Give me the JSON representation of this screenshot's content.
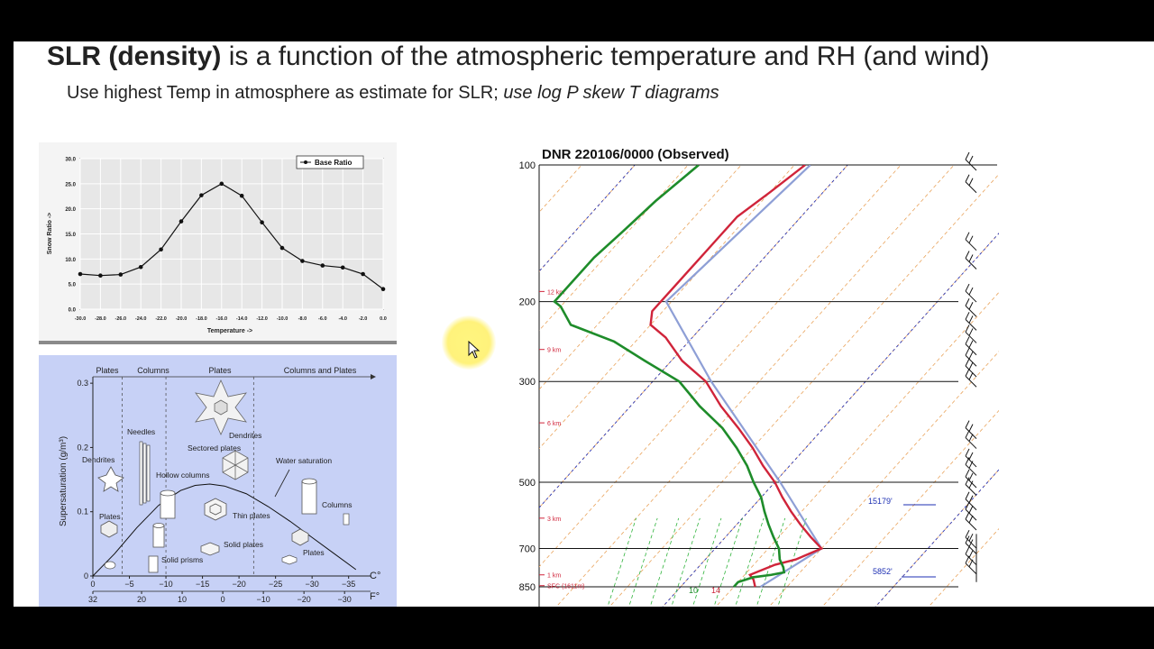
{
  "slide": {
    "title_bold": "SLR (density)",
    "title_rest": " is a function of the atmospheric temperature and RH (and wind)",
    "subtitle_plain": "Use highest Temp in atmosphere as estimate for SLR; ",
    "subtitle_italic": "use log P skew T diagrams"
  },
  "chart_data": [
    {
      "type": "line",
      "legend": "Base Ratio",
      "legend_position": "top-right",
      "xlabel": "Temperature ->",
      "ylabel": "Snow Ratio ->",
      "x_ticks": [
        "-30.0",
        "-28.0",
        "-26.0",
        "-24.0",
        "-22.0",
        "-20.0",
        "-18.0",
        "-16.0",
        "-14.0",
        "-12.0",
        "-10.0",
        "-8.0",
        "-6.0",
        "-4.0",
        "-2.0",
        "0.0"
      ],
      "y_ticks": [
        "0.0",
        "5.0",
        "10.0",
        "15.0",
        "20.0",
        "25.0",
        "30.0"
      ],
      "xlim": [
        -30,
        0
      ],
      "ylim": [
        0,
        30
      ],
      "grid": true,
      "x": [
        -30,
        -28,
        -26,
        -24,
        -22,
        -20,
        -18,
        -16,
        -14,
        -12,
        -10,
        -8,
        -6,
        -4,
        -2,
        0
      ],
      "values": [
        7.0,
        6.7,
        6.9,
        8.4,
        11.9,
        17.5,
        22.7,
        25.0,
        22.6,
        17.3,
        12.2,
        9.6,
        8.7,
        8.3,
        7.0,
        4.0
      ],
      "colors": {
        "line": "#111111",
        "bg": "#e7e7e7",
        "frame": "#ffffff"
      }
    },
    {
      "type": "line",
      "ylabel": "Supersaturation (g/m³)",
      "xunit_c": "C°",
      "xunit_f": "F°",
      "c_ticks": [
        "0",
        "−5",
        "−10",
        "−15",
        "−20",
        "−25",
        "−30",
        "−35"
      ],
      "c_values": [
        0,
        -5,
        -10,
        -15,
        -20,
        -25,
        -30,
        -35
      ],
      "f_ticks": [
        "32",
        "20",
        "10",
        "0",
        "−10",
        "−20",
        "−30"
      ],
      "f_values": [
        32,
        20,
        10,
        0,
        -10,
        -20,
        -30
      ],
      "y_ticks": [
        "0",
        "0.1",
        "0.2",
        "0.3"
      ],
      "y_values": [
        0,
        0.1,
        0.2,
        0.3
      ],
      "xlim": [
        0,
        -38
      ],
      "ylim": [
        0,
        0.31
      ],
      "series": [
        {
          "name": "Water saturation",
          "x": [
            0,
            -3,
            -6,
            -9,
            -12,
            -14,
            -16,
            -18,
            -21,
            -24,
            -27,
            -30,
            -33,
            -36
          ],
          "values": [
            0.0,
            0.035,
            0.075,
            0.11,
            0.133,
            0.141,
            0.143,
            0.14,
            0.128,
            0.108,
            0.085,
            0.06,
            0.035,
            0.01
          ]
        }
      ],
      "regimes": [
        "Plates",
        "Columns",
        "Plates",
        "Columns and Plates"
      ],
      "crystal_labels": [
        "Needles",
        "Dendrites",
        "Sectored plates",
        "Dendrites",
        "Hollow columns",
        "Water saturation",
        "Columns",
        "Plates",
        "Thin plates",
        "Solid plates",
        "Plates",
        "Solid prisms"
      ],
      "colors": {
        "bg": "#c7d1f6",
        "curve": "#111111"
      }
    },
    {
      "type": "line",
      "title": "DNR   220106/0000  (Observed)",
      "pressure_ticks": [
        "100",
        "200",
        "300",
        "500",
        "700",
        "850"
      ],
      "pressure_values": [
        100,
        200,
        300,
        500,
        700,
        850
      ],
      "height_labels": [
        "12 km",
        "9 km",
        "6 km",
        "3 km",
        "1 km",
        "SFC (1611m)"
      ],
      "height_values_hpa": [
        190,
        255,
        370,
        600,
        800,
        845
      ],
      "surface_labels": {
        "dewpoint": "10",
        "temperature": "14"
      },
      "annotations": [
        "15179'",
        "5852'"
      ],
      "series": [
        {
          "name": "temperature",
          "color": "#d0243a",
          "p": [
            850,
            820,
            800,
            760,
            740,
            700,
            660,
            620,
            580,
            540,
            500,
            460,
            420,
            380,
            340,
            300,
            270,
            240,
            225,
            210,
            200,
            180,
            160,
            145,
            130,
            115,
            100
          ],
          "t": [
            14,
            12.5,
            11,
            14,
            17,
            20,
            16,
            12,
            8,
            4,
            0,
            -5,
            -10,
            -16,
            -23,
            -30,
            -38,
            -45,
            -50,
            -52,
            -52,
            -52,
            -52,
            -52,
            -52,
            -50,
            -48
          ]
        },
        {
          "name": "dewpoint",
          "color": "#1e8c2a",
          "p": [
            850,
            830,
            810,
            800,
            790,
            770,
            740,
            700,
            660,
            620,
            580,
            540,
            500,
            460,
            420,
            380,
            340,
            300,
            270,
            245,
            225,
            205,
            200,
            180,
            160,
            140,
            120,
            100
          ],
          "td": [
            10,
            10,
            12,
            15,
            17,
            16,
            14,
            12,
            9,
            6,
            3,
            0,
            -4,
            -8,
            -13,
            -19,
            -27,
            -35,
            -45,
            -54,
            -65,
            -70,
            -72,
            -72,
            -72,
            -71,
            -70,
            -68
          ]
        },
        {
          "name": "environment",
          "color": "#8e9fd6",
          "p": [
            850,
            700,
            500,
            300,
            200,
            100
          ],
          "t": [
            15,
            20,
            1,
            -29,
            -51,
            -47
          ]
        }
      ],
      "wind_levels_hpa": [
        100,
        112,
        150,
        165,
        195,
        210,
        225,
        240,
        255,
        270,
        285,
        300,
        390,
        410,
        450,
        470,
        500,
        520,
        560,
        590,
        620,
        680,
        700,
        740,
        775
      ]
    }
  ]
}
